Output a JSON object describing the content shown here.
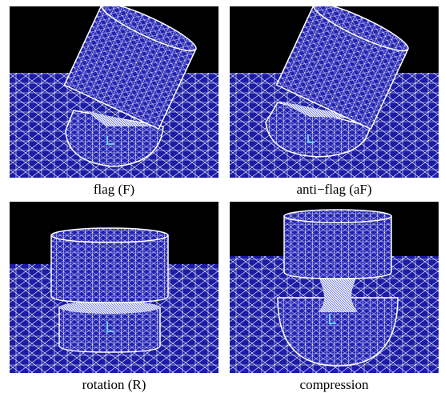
{
  "panels": [
    {
      "caption": "flag (F)"
    },
    {
      "caption": "anti−flag (aF)"
    },
    {
      "caption": "rotation (R)"
    },
    {
      "caption": "compression"
    }
  ]
}
